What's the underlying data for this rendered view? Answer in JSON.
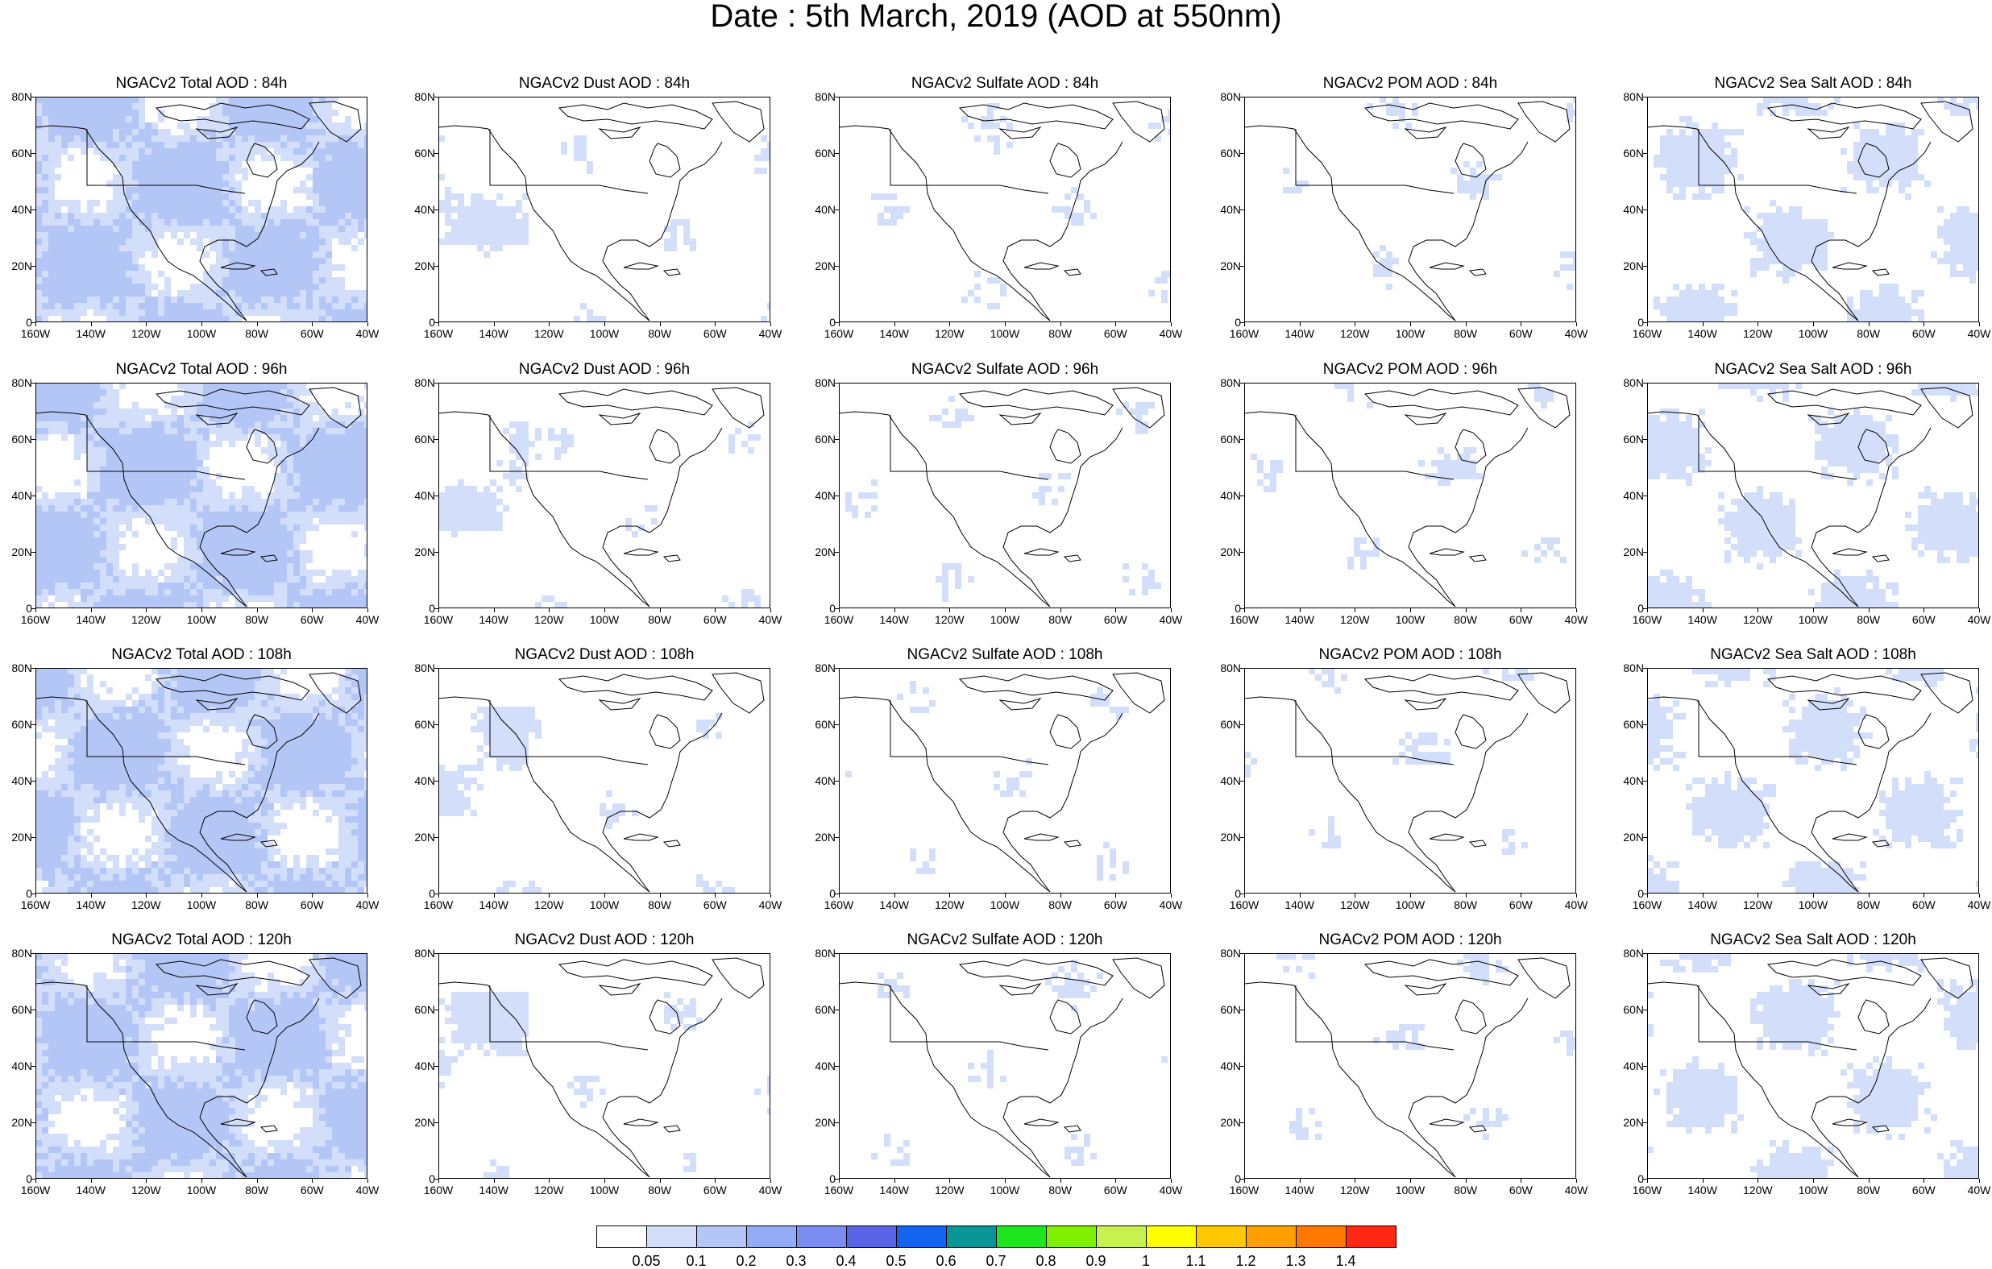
{
  "title": "Date : 5th March, 2019 (AOD at 550nm)",
  "colors": {
    "outline": "#000000",
    "shade_light": "#d3defa",
    "shade_mid": "#b4c6f6"
  },
  "panel_titles": [
    [
      "NGACv2 Total AOD : 84h",
      "NGACv2 Dust AOD : 84h",
      "NGACv2 Sulfate AOD : 84h",
      "NGACv2 POM AOD : 84h",
      "NGACv2 Sea Salt AOD : 84h"
    ],
    [
      "NGACv2 Total AOD : 96h",
      "NGACv2 Dust AOD : 96h",
      "NGACv2 Sulfate AOD : 96h",
      "NGACv2 POM AOD : 96h",
      "NGACv2 Sea Salt AOD : 96h"
    ],
    [
      "NGACv2 Total AOD : 108h",
      "NGACv2 Dust AOD : 108h",
      "NGACv2 Sulfate AOD : 108h",
      "NGACv2 POM AOD : 108h",
      "NGACv2 Sea Salt AOD : 108h"
    ],
    [
      "NGACv2 Total AOD : 120h",
      "NGACv2 Dust AOD : 120h",
      "NGACv2 Sulfate AOD : 120h",
      "NGACv2 POM AOD : 120h",
      "NGACv2 Sea Salt  AOD : 120h"
    ]
  ],
  "species_coverage": {
    "total": 0.75,
    "dust": 0.12,
    "sulfate": 0.04,
    "pom": 0.04,
    "seasalt": 0.35
  },
  "y_ticks": [
    "0",
    "20N",
    "40N",
    "60N",
    "80N"
  ],
  "x_ticks": [
    "160W",
    "140W",
    "120W",
    "100W",
    "80W",
    "60W",
    "40W"
  ],
  "legend": {
    "labels": [
      "0.05",
      "0.1",
      "0.2",
      "0.3",
      "0.4",
      "0.5",
      "0.6",
      "0.7",
      "0.8",
      "0.9",
      "1",
      "1.1",
      "1.2",
      "1.3",
      "1.4"
    ],
    "colors": [
      "#ffffff",
      "#d3defa",
      "#b4c6f6",
      "#94acf5",
      "#7b8df0",
      "#5a64e6",
      "#1464f0",
      "#0a9696",
      "#1ee61e",
      "#80f000",
      "#c8f050",
      "#ffff00",
      "#ffc800",
      "#ffa000",
      "#ff7800",
      "#ff2814"
    ]
  }
}
